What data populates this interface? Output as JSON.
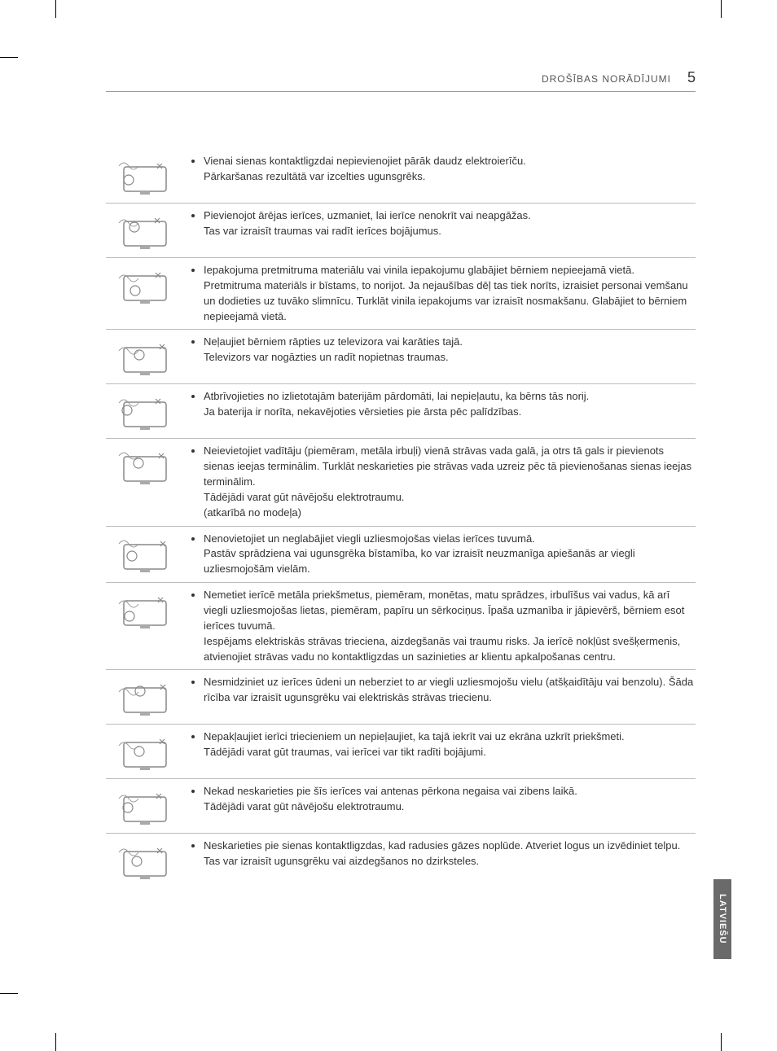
{
  "header": {
    "title": "DROŠĪBAS NORĀDĪJUMI",
    "page_number": "5"
  },
  "tab": "LATVIEŠU",
  "rows": [
    {
      "icon": "plug-overload",
      "lines": [
        "Vienai sienas kontaktligzdai nepievienojiet pārāk daudz elektroierīču.",
        "Pārkaršanas rezultātā var izcelties ugunsgrēks."
      ]
    },
    {
      "icon": "tv-falling",
      "lines": [
        "Pievienojot ārējas ierīces, uzmaniet, lai ierīce nenokrīt vai neapgāžas.",
        "Tas var izraisīt traumas vai radīt ierīces bojājumus."
      ]
    },
    {
      "icon": "packaging",
      "lines": [
        "Iepakojuma pretmitruma materiālu vai vinila iepakojumu glabājiet bērniem nepieejamā vietā.",
        "Pretmitruma materiāls ir bīstams, to norijot. Ja nejaušības dēļ tas tiek norīts, izraisiet personai vemšanu un dodieties uz tuvāko slimnīcu. Turklāt vinila iepakojums var izraisīt nosmakšanu. Glabājiet to bērniem nepieejamā vietā."
      ]
    },
    {
      "icon": "climb-tv",
      "lines": [
        "Neļaujiet bērniem rāpties uz televizora vai karāties tajā.",
        "Televizors var nogāzties un radīt nopietnas traumas."
      ]
    },
    {
      "icon": "battery",
      "lines": [
        "Atbrīvojieties no izlietotajām baterijām pārdomāti, lai nepieļautu, ka bērns tās norij.",
        "Ja baterija ir norīta, nekavējoties vērsieties pie ārsta pēc palīdzības."
      ]
    },
    {
      "icon": "conductor",
      "lines": [
        "Neievietojiet vadītāju (piemēram, metāla irbuļi) vienā strāvas vada galā, ja otrs tā gals ir pievienots sienas ieejas terminālim. Turklāt neskarieties pie strāvas vada uzreiz pēc tā pievienošanas sienas ieejas terminālim.",
        "Tādējādi varat gūt nāvējošu elektrotraumu.",
        "(atkarībā no modeļa)"
      ]
    },
    {
      "icon": "flammable",
      "lines": [
        "Nenovietojiet un neglabājiet viegli uzliesmojošas vielas ierīces tuvumā.",
        "Pastāv sprādziena vai ugunsgrēka bīstamība, ko var izraisīt neuzmanīga apiešanās ar viegli uzliesmojošām vielām."
      ]
    },
    {
      "icon": "objects-in",
      "lines": [
        "Nemetiet ierīcē metāla priekšmetus, piemēram, monētas, matu sprādzes, irbulīšus vai vadus, kā arī viegli uzliesmojošas lietas, piemēram, papīru un sērkociņus. Īpaša uzmanība ir jāpievērš, bērniem esot ierīces tuvumā.",
        "Iespējams elektriskās strāvas trieciena, aizdegšanās vai traumu risks. Ja ierīcē nokļūst svešķermenis, atvienojiet strāvas vadu no kontaktligzdas un sazinieties ar klientu apkalpošanas centru."
      ]
    },
    {
      "icon": "spray",
      "lines": [
        "Nesmidziniet uz ierīces ūdeni un neberziet to ar viegli uzliesmojošu vielu (atšķaidītāju vai benzolu). Šāda rīcība var izraisīt ugunsgrēku vai elektriskās strāvas triecienu."
      ]
    },
    {
      "icon": "impact",
      "lines": [
        "Nepakļaujiet ierīci triecieniem un nepieļaujiet, ka tajā iekrīt vai uz ekrāna uzkrīt priekšmeti.",
        "Tādējādi varat gūt traumas, vai ierīcei var tikt radīti bojājumi."
      ]
    },
    {
      "icon": "lightning",
      "lines": [
        "Nekad neskarieties pie šīs ierīces vai antenas pērkona negaisa vai zibens laikā.",
        "Tādējādi varat gūt nāvējošu elektrotraumu."
      ]
    },
    {
      "icon": "gas",
      "lines": [
        "Neskarieties pie sienas kontaktligzdas, kad radusies gāzes noplūde. Atveriet logus un izvēdiniet telpu.",
        "Tas var izraisīt ugunsgrēku vai aizdegšanos no dzirksteles."
      ]
    }
  ]
}
